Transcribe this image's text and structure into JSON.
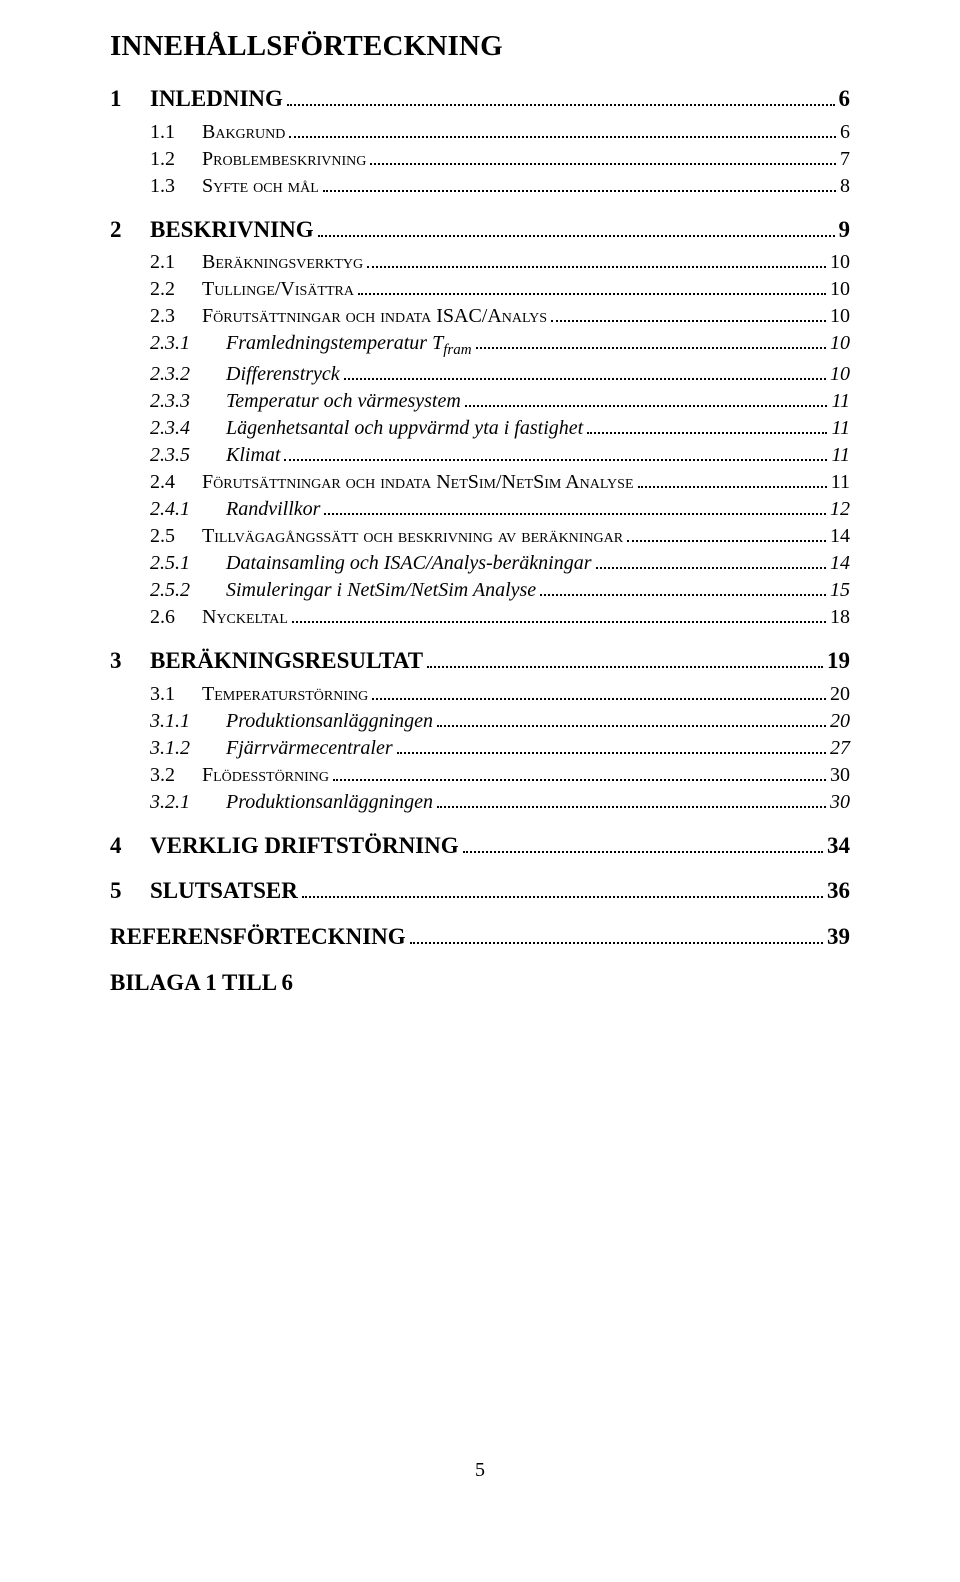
{
  "colors": {
    "text": "#000000",
    "background": "#ffffff",
    "leader": "#000000"
  },
  "typography": {
    "font_family": "Times New Roman",
    "title_fontsize_pt": 22,
    "h1_fontsize_pt": 17,
    "h2_fontsize_pt": 15,
    "h3_fontsize_pt": 15,
    "h1_weight": "bold",
    "h3_style": "italic",
    "h2_variant": "small-caps"
  },
  "title": "INNEHÅLLSFÖRTECKNING",
  "page_number": "5",
  "toc": [
    {
      "level": "h1",
      "num": "1",
      "label": "INLEDNING",
      "page": "6"
    },
    {
      "level": "h2",
      "num": "1.1",
      "label_sc": "Bakgrund",
      "page": "6"
    },
    {
      "level": "h2",
      "num": "1.2",
      "label_sc": "Problembeskrivning",
      "page": "7"
    },
    {
      "level": "h2",
      "num": "1.3",
      "label_sc": "Syfte och mål",
      "page": "8"
    },
    {
      "level": "h1",
      "num": "2",
      "label": "BESKRIVNING",
      "page": "9"
    },
    {
      "level": "h2",
      "num": "2.1",
      "label_sc": "Beräkningsverktyg",
      "page": "10"
    },
    {
      "level": "h2",
      "num": "2.2",
      "label_sc": "Tullinge/Visättra",
      "page": "10"
    },
    {
      "level": "h2",
      "num": "2.3",
      "label_sc": "Förutsättningar och indata ISAC/Analys",
      "page": "10"
    },
    {
      "level": "h3",
      "num": "2.3.1",
      "label_pre": "Framledningstemperatur T",
      "label_sub": "fram",
      "page": "10"
    },
    {
      "level": "h3",
      "num": "2.3.2",
      "label": "Differenstryck",
      "page": "10"
    },
    {
      "level": "h3",
      "num": "2.3.3",
      "label": "Temperatur och värmesystem",
      "page": "11"
    },
    {
      "level": "h3",
      "num": "2.3.4",
      "label": "Lägenhetsantal och uppvärmd yta i fastighet",
      "page": "11"
    },
    {
      "level": "h3",
      "num": "2.3.5",
      "label": "Klimat",
      "page": "11"
    },
    {
      "level": "h2",
      "num": "2.4",
      "label_sc": "Förutsättningar och indata NetSim/NetSim Analyse",
      "page": "11"
    },
    {
      "level": "h3",
      "num": "2.4.1",
      "label": "Randvillkor",
      "page": "12"
    },
    {
      "level": "h2",
      "num": "2.5",
      "label_sc": "Tillvägagångssätt och beskrivning av beräkningar",
      "page": "14"
    },
    {
      "level": "h3",
      "num": "2.5.1",
      "label": "Datainsamling och ISAC/Analys-beräkningar",
      "page": "14"
    },
    {
      "level": "h3",
      "num": "2.5.2",
      "label": "Simuleringar i NetSim/NetSim Analyse",
      "page": "15"
    },
    {
      "level": "h2",
      "num": "2.6",
      "label_sc": "Nyckeltal",
      "page": "18"
    },
    {
      "level": "h1",
      "num": "3",
      "label": "BERÄKNINGSRESULTAT",
      "page": "19"
    },
    {
      "level": "h2",
      "num": "3.1",
      "label_sc": "Temperaturstörning",
      "page": "20"
    },
    {
      "level": "h3",
      "num": "3.1.1",
      "label": "Produktionsanläggningen",
      "page": "20"
    },
    {
      "level": "h3",
      "num": "3.1.2",
      "label": "Fjärrvärmecentraler",
      "page": "27"
    },
    {
      "level": "h2",
      "num": "3.2",
      "label_sc": "Flödesstörning",
      "page": "30"
    },
    {
      "level": "h3",
      "num": "3.2.1",
      "label": "Produktionsanläggningen",
      "page": "30"
    },
    {
      "level": "h1",
      "num": "4",
      "label": "VERKLIG DRIFTSTÖRNING",
      "page": "34"
    },
    {
      "level": "h1",
      "num": "5",
      "label": "SLUTSATSER",
      "page": "36"
    },
    {
      "level": "h1",
      "num": "",
      "label": "REFERENSFÖRTECKNING",
      "page": "39",
      "no_num": true
    },
    {
      "level": "h1",
      "num": "",
      "label": "BILAGA 1 TILL 6",
      "page": "",
      "no_num": true,
      "no_leader": true
    }
  ]
}
